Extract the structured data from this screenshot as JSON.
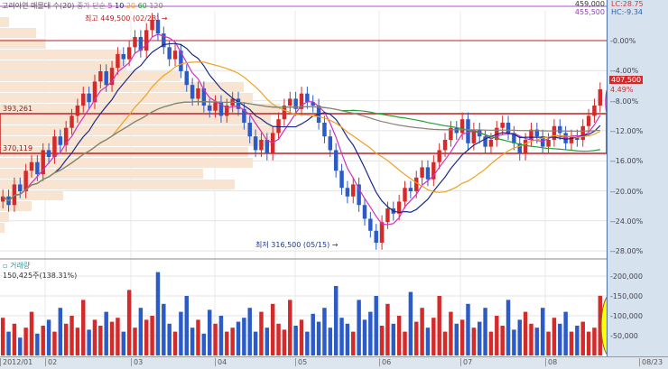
{
  "header": {
    "title": "고려아연 매물대 수(20)",
    "ma_label": "종가 단순",
    "ma_periods": [
      "5",
      "10",
      "20",
      "60",
      "120"
    ]
  },
  "top_right": {
    "price_hi": "459,000",
    "price_lo": "455,500",
    "lc": "LC:28.75",
    "hc": "HC:-9.34"
  },
  "current": {
    "price": "407,500",
    "change": "4.49%"
  },
  "annotations": {
    "high": "최고 449,500 (02/28) →",
    "low": "최저 316,500 (05/15) →",
    "level1": "393,261",
    "level2": "370,119"
  },
  "volume_panel": {
    "title": "거래량",
    "value": "150,425주(138.31%)"
  },
  "colors": {
    "up": "#d42a2a",
    "down": "#2a5bc8",
    "ma5": "#d030c0",
    "ma10": "#1a2a8a",
    "ma20": "#f0a020",
    "ma60": "#22a032",
    "ma120": "#8a8078",
    "profile": "#f8e4d0",
    "level": "#c02020"
  },
  "chart_data": {
    "type": "candlestick",
    "y_ticks": [
      "0.00%",
      "-4.00%",
      "-8.00%",
      "-12.00%",
      "-16.00%",
      "-20.00%",
      "-24.00%",
      "-28.00%"
    ],
    "volume_ticks": [
      "200,000",
      "150,000",
      "100,000",
      "50,000"
    ],
    "x_ticks": [
      "2012/01",
      "02",
      "03",
      "04",
      "05",
      "06",
      "07",
      "08",
      "08/23"
    ],
    "closes": [
      345,
      340,
      352,
      348,
      360,
      365,
      358,
      372,
      368,
      380,
      375,
      385,
      392,
      398,
      405,
      400,
      412,
      418,
      410,
      420,
      428,
      425,
      432,
      438,
      430,
      442,
      448,
      440,
      432,
      425,
      430,
      418,
      410,
      402,
      408,
      398,
      395,
      400,
      392,
      398,
      402,
      396,
      388,
      380,
      372,
      378,
      370,
      382,
      390,
      398,
      402,
      396,
      405,
      400,
      398,
      388,
      380,
      372,
      360,
      350,
      345,
      352,
      340,
      332,
      325,
      318,
      330,
      338,
      335,
      342,
      350,
      348,
      356,
      362,
      355,
      365,
      372,
      378,
      385,
      382,
      390,
      376,
      384,
      380,
      374,
      378,
      385,
      388,
      382,
      376,
      370,
      378,
      384,
      380,
      374,
      378,
      386,
      382,
      376,
      380,
      378,
      386,
      392,
      398,
      407.5
    ],
    "volumes": [
      95,
      60,
      80,
      45,
      70,
      110,
      55,
      75,
      90,
      60,
      120,
      80,
      100,
      70,
      140,
      65,
      90,
      75,
      110,
      85,
      95,
      60,
      165,
      70,
      120,
      90,
      100,
      210,
      130,
      80,
      60,
      110,
      150,
      70,
      90,
      55,
      115,
      80,
      100,
      60,
      70,
      85,
      95,
      120,
      60,
      110,
      70,
      130,
      80,
      65,
      140,
      75,
      90,
      60,
      105,
      85,
      120,
      70,
      175,
      95,
      80,
      60,
      140,
      90,
      110,
      150,
      75,
      130,
      80,
      100,
      60,
      160,
      85,
      120,
      70,
      95,
      150,
      60,
      110,
      80,
      90,
      130,
      70,
      85,
      120,
      60,
      100,
      75,
      140,
      65,
      90,
      110,
      80,
      70,
      120,
      60,
      95,
      80,
      110,
      60,
      75,
      85,
      60,
      70,
      150.425
    ],
    "volume_unit": "thousand shares",
    "profile": [
      5,
      10,
      35,
      70,
      260,
      225,
      280,
      275,
      300,
      310,
      300,
      310,
      280,
      270,
      200,
      140,
      135,
      50,
      40,
      10
    ]
  }
}
